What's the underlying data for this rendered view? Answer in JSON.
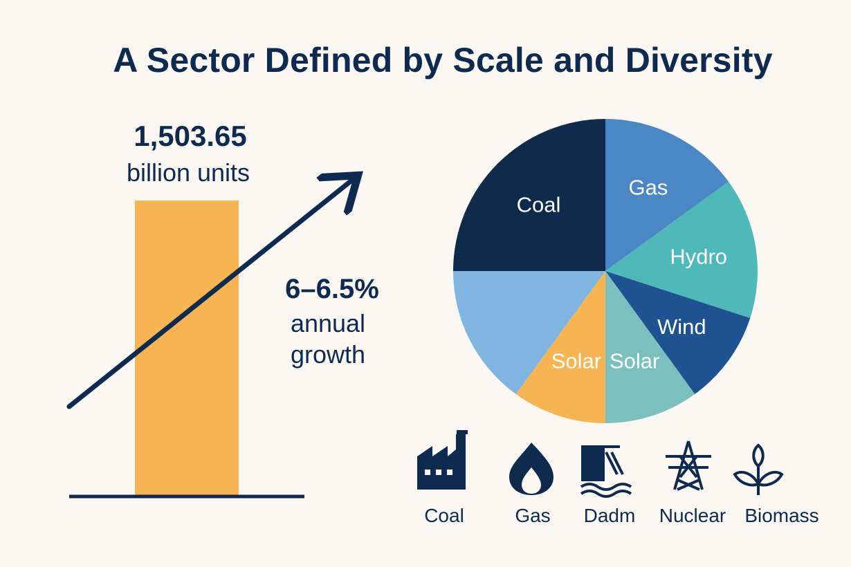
{
  "title": "A Sector Defined by Scale and Diversity",
  "metric": {
    "value": "1,503.65",
    "unit": "billion units"
  },
  "growth": {
    "rate": "6–6.5%",
    "line1": "annual",
    "line2": "growth"
  },
  "chart_data": [
    {
      "type": "bar",
      "categories": [
        ""
      ],
      "values": [
        1503.65
      ],
      "bar_color": "#f7b452"
    },
    {
      "type": "pie",
      "slices": [
        {
          "label": "Coal",
          "value": 25,
          "color": "#102a4c"
        },
        {
          "label": "Gas",
          "value": 15,
          "color": "#4b86c5"
        },
        {
          "label": "Hydro",
          "value": 15,
          "color": "#4fb8b8"
        },
        {
          "label": "Wind",
          "value": 10,
          "color": "#1e5291"
        },
        {
          "label": "Solar",
          "value": 10,
          "color": "#7bc0be"
        },
        {
          "label": "Solar",
          "value": 10,
          "color": "#f7b452"
        },
        {
          "label": "",
          "value": 15,
          "color": "#7fb5e0"
        }
      ]
    }
  ],
  "icons": [
    {
      "icon": "factory-icon",
      "label": "Coal"
    },
    {
      "icon": "flame-icon",
      "label": "Gas"
    },
    {
      "icon": "dam-icon",
      "label": "Dadm"
    },
    {
      "icon": "pylon-icon",
      "label": "Nuclear"
    },
    {
      "icon": "sprout-icon",
      "label": "Biomass"
    }
  ],
  "colors": {
    "navy": "#0f2a4f",
    "background": "#fbf8f3"
  }
}
